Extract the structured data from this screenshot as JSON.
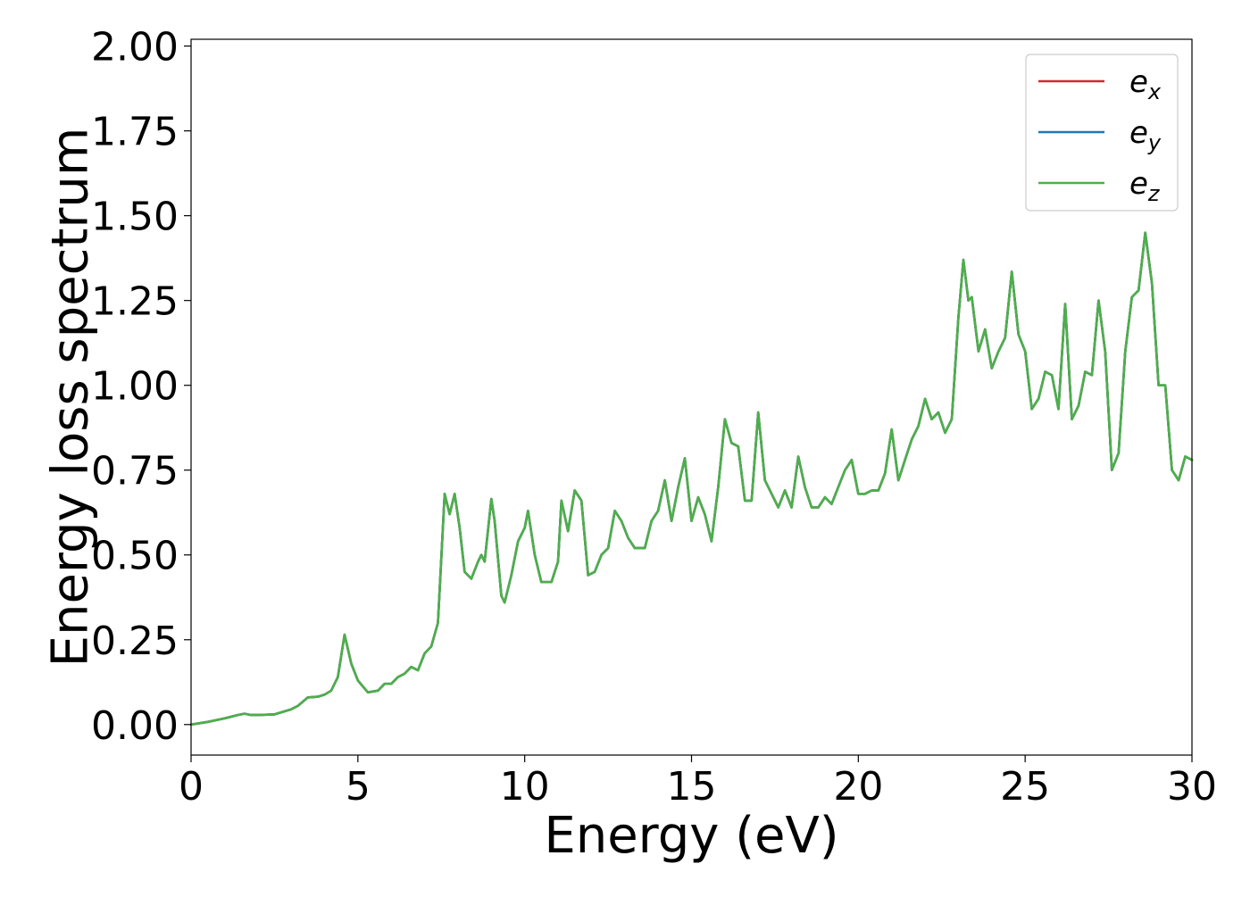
{
  "chart_data": {
    "type": "line",
    "title": "",
    "xlabel": "Energy (eV)",
    "ylabel": "Energy loss spectrum",
    "xlim": [
      0,
      30
    ],
    "ylim": [
      -0.09,
      2.02
    ],
    "xticks": [
      0,
      5,
      10,
      15,
      20,
      25,
      30
    ],
    "xtick_labels": [
      "0",
      "5",
      "10",
      "15",
      "20",
      "25",
      "30"
    ],
    "yticks": [
      0,
      0.25,
      0.5,
      0.75,
      1.0,
      1.25,
      1.5,
      1.75,
      2.0
    ],
    "ytick_labels": [
      "0.00",
      "0.25",
      "0.50",
      "0.75",
      "1.00",
      "1.25",
      "1.50",
      "1.75",
      "2.00"
    ],
    "grid": false,
    "legend_position": "top-right",
    "legend": [
      {
        "base": "e",
        "sub": "x",
        "color": "#d62728"
      },
      {
        "base": "e",
        "sub": "y",
        "color": "#1f77b4"
      },
      {
        "base": "e",
        "sub": "z",
        "color": "#4daf4a"
      }
    ],
    "x": [
      0,
      0.5,
      1.0,
      1.4,
      1.6,
      1.8,
      2.0,
      2.5,
      3.0,
      3.2,
      3.5,
      3.8,
      4.0,
      4.2,
      4.4,
      4.6,
      4.8,
      5.0,
      5.3,
      5.6,
      5.8,
      6.0,
      6.2,
      6.4,
      6.6,
      6.8,
      7.0,
      7.2,
      7.4,
      7.6,
      7.75,
      7.9,
      8.05,
      8.2,
      8.4,
      8.6,
      8.7,
      8.8,
      9.0,
      9.1,
      9.3,
      9.4,
      9.6,
      9.8,
      10.0,
      10.1,
      10.3,
      10.5,
      10.8,
      11.0,
      11.1,
      11.3,
      11.5,
      11.7,
      11.9,
      12.1,
      12.3,
      12.5,
      12.7,
      12.9,
      13.1,
      13.3,
      13.6,
      13.8,
      14.0,
      14.2,
      14.4,
      14.6,
      14.8,
      15.0,
      15.2,
      15.4,
      15.6,
      15.8,
      16.0,
      16.2,
      16.4,
      16.6,
      16.8,
      17.0,
      17.2,
      17.4,
      17.6,
      17.8,
      18.0,
      18.2,
      18.4,
      18.6,
      18.8,
      19.0,
      19.2,
      19.4,
      19.6,
      19.8,
      20.0,
      20.2,
      20.4,
      20.6,
      20.8,
      21.0,
      21.2,
      21.4,
      21.6,
      21.8,
      22.0,
      22.2,
      22.4,
      22.6,
      22.8,
      23.0,
      23.15,
      23.3,
      23.4,
      23.6,
      23.8,
      24.0,
      24.2,
      24.4,
      24.6,
      24.8,
      25.0,
      25.2,
      25.4,
      25.6,
      25.8,
      26.0,
      26.2,
      26.4,
      26.6,
      26.8,
      27.0,
      27.2,
      27.4,
      27.6,
      27.8,
      28.0,
      28.2,
      28.4,
      28.6,
      28.8,
      29.0,
      29.2,
      29.4,
      29.6,
      29.8,
      30.0
    ],
    "series": [
      {
        "label": "e_x",
        "color": "#d62728",
        "y": [
          0.0,
          0.008,
          0.018,
          0.028,
          0.032,
          0.028,
          0.028,
          0.03,
          0.045,
          0.055,
          0.08,
          0.082,
          0.088,
          0.1,
          0.14,
          0.265,
          0.18,
          0.13,
          0.095,
          0.1,
          0.12,
          0.12,
          0.14,
          0.15,
          0.17,
          0.16,
          0.21,
          0.23,
          0.3,
          0.68,
          0.62,
          0.68,
          0.58,
          0.45,
          0.43,
          0.48,
          0.5,
          0.48,
          0.665,
          0.6,
          0.38,
          0.36,
          0.44,
          0.54,
          0.58,
          0.63,
          0.5,
          0.42,
          0.42,
          0.48,
          0.66,
          0.57,
          0.69,
          0.66,
          0.44,
          0.45,
          0.5,
          0.52,
          0.63,
          0.6,
          0.55,
          0.52,
          0.52,
          0.6,
          0.63,
          0.72,
          0.6,
          0.7,
          0.785,
          0.6,
          0.67,
          0.62,
          0.54,
          0.7,
          0.9,
          0.83,
          0.82,
          0.66,
          0.66,
          0.92,
          0.72,
          0.68,
          0.64,
          0.69,
          0.64,
          0.79,
          0.7,
          0.64,
          0.64,
          0.67,
          0.65,
          0.7,
          0.75,
          0.78,
          0.68,
          0.68,
          0.69,
          0.69,
          0.74,
          0.87,
          0.72,
          0.78,
          0.84,
          0.88,
          0.96,
          0.9,
          0.92,
          0.86,
          0.9,
          1.2,
          1.37,
          1.25,
          1.26,
          1.1,
          1.165,
          1.05,
          1.1,
          1.14,
          1.335,
          1.15,
          1.1,
          0.93,
          0.96,
          1.04,
          1.03,
          0.93,
          1.24,
          0.9,
          0.94,
          1.04,
          1.03,
          1.25,
          1.1,
          0.75,
          0.8,
          1.1,
          1.26,
          1.28,
          1.45,
          1.3,
          1.0,
          1.0,
          0.75,
          0.72,
          0.79,
          0.78
        ]
      },
      {
        "label": "e_y",
        "color": "#1f77b4",
        "y": [
          0.0,
          0.008,
          0.018,
          0.028,
          0.032,
          0.028,
          0.028,
          0.03,
          0.045,
          0.055,
          0.08,
          0.082,
          0.088,
          0.1,
          0.14,
          0.265,
          0.18,
          0.13,
          0.095,
          0.1,
          0.12,
          0.12,
          0.14,
          0.15,
          0.17,
          0.16,
          0.21,
          0.23,
          0.3,
          0.68,
          0.62,
          0.68,
          0.58,
          0.45,
          0.43,
          0.48,
          0.5,
          0.48,
          0.665,
          0.6,
          0.38,
          0.36,
          0.44,
          0.54,
          0.58,
          0.63,
          0.5,
          0.42,
          0.42,
          0.48,
          0.66,
          0.57,
          0.69,
          0.66,
          0.44,
          0.45,
          0.5,
          0.52,
          0.63,
          0.6,
          0.55,
          0.52,
          0.52,
          0.6,
          0.63,
          0.72,
          0.6,
          0.7,
          0.785,
          0.6,
          0.67,
          0.62,
          0.54,
          0.7,
          0.9,
          0.83,
          0.82,
          0.66,
          0.66,
          0.92,
          0.72,
          0.68,
          0.64,
          0.69,
          0.64,
          0.79,
          0.7,
          0.64,
          0.64,
          0.67,
          0.65,
          0.7,
          0.75,
          0.78,
          0.68,
          0.68,
          0.69,
          0.69,
          0.74,
          0.87,
          0.72,
          0.78,
          0.84,
          0.88,
          0.96,
          0.9,
          0.92,
          0.86,
          0.9,
          1.2,
          1.37,
          1.25,
          1.26,
          1.1,
          1.165,
          1.05,
          1.1,
          1.14,
          1.335,
          1.15,
          1.1,
          0.93,
          0.96,
          1.04,
          1.03,
          0.93,
          1.24,
          0.9,
          0.94,
          1.04,
          1.03,
          1.25,
          1.1,
          0.75,
          0.8,
          1.1,
          1.26,
          1.28,
          1.45,
          1.3,
          1.0,
          1.0,
          0.75,
          0.72,
          0.79,
          0.78
        ]
      },
      {
        "label": "e_z",
        "color": "#4daf4a",
        "y": [
          0.0,
          0.008,
          0.018,
          0.028,
          0.032,
          0.028,
          0.028,
          0.03,
          0.045,
          0.055,
          0.08,
          0.082,
          0.088,
          0.1,
          0.14,
          0.265,
          0.18,
          0.13,
          0.095,
          0.1,
          0.12,
          0.12,
          0.14,
          0.15,
          0.17,
          0.16,
          0.21,
          0.23,
          0.3,
          0.68,
          0.62,
          0.68,
          0.58,
          0.45,
          0.43,
          0.48,
          0.5,
          0.48,
          0.665,
          0.6,
          0.38,
          0.36,
          0.44,
          0.54,
          0.58,
          0.63,
          0.5,
          0.42,
          0.42,
          0.48,
          0.66,
          0.57,
          0.69,
          0.66,
          0.44,
          0.45,
          0.5,
          0.52,
          0.63,
          0.6,
          0.55,
          0.52,
          0.52,
          0.6,
          0.63,
          0.72,
          0.6,
          0.7,
          0.785,
          0.6,
          0.67,
          0.62,
          0.54,
          0.7,
          0.9,
          0.83,
          0.82,
          0.66,
          0.66,
          0.92,
          0.72,
          0.68,
          0.64,
          0.69,
          0.64,
          0.79,
          0.7,
          0.64,
          0.64,
          0.67,
          0.65,
          0.7,
          0.75,
          0.78,
          0.68,
          0.68,
          0.69,
          0.69,
          0.74,
          0.87,
          0.72,
          0.78,
          0.84,
          0.88,
          0.96,
          0.9,
          0.92,
          0.86,
          0.9,
          1.2,
          1.37,
          1.25,
          1.26,
          1.1,
          1.165,
          1.05,
          1.1,
          1.14,
          1.335,
          1.15,
          1.1,
          0.93,
          0.96,
          1.04,
          1.03,
          0.93,
          1.24,
          0.9,
          0.94,
          1.04,
          1.03,
          1.25,
          1.1,
          0.75,
          0.8,
          1.1,
          1.26,
          1.28,
          1.45,
          1.3,
          1.0,
          1.0,
          0.75,
          0.72,
          0.79,
          0.78
        ]
      }
    ]
  }
}
